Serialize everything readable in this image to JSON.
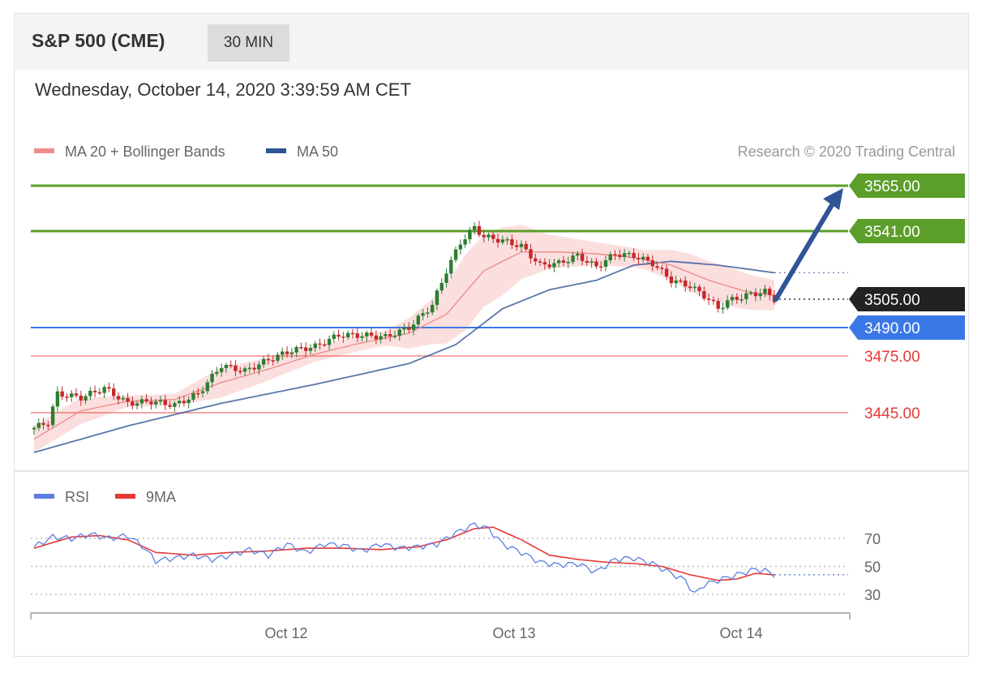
{
  "header": {
    "title": "S&P 500 (CME)",
    "timeframe": "30 MIN",
    "date": "Wednesday, October 14, 2020 3:39:59 AM CET"
  },
  "colors": {
    "ma20": "#f08c8c",
    "ma50": "#2f5597",
    "band": "#f9d4d4",
    "resistance": "#5c9e2a",
    "support_blue": "#3b78e7",
    "support_red": "#e53935",
    "current": "#222222",
    "arrow": "#2f5597",
    "rsi": "#5b7fe0",
    "rsi_ma": "#e53935",
    "candle_up": "#2e7d32",
    "candle_down": "#c62828"
  },
  "chart_data": [
    {
      "type": "line",
      "title": "S&P 500 (CME)",
      "legend": [
        {
          "name": "MA 20 + Bollinger Bands",
          "color": "#f08c8c"
        },
        {
          "name": "MA 50",
          "color": "#2f5597"
        }
      ],
      "credit": "Research © 2020 Trading Central",
      "ylim": [
        3420,
        3575
      ],
      "xticks": [
        "Oct 12",
        "Oct 13",
        "Oct 14"
      ],
      "levels": [
        {
          "value": 3565,
          "label": "3565.00",
          "kind": "resistance",
          "style": "tag"
        },
        {
          "value": 3541,
          "label": "3541.00",
          "kind": "resistance",
          "style": "tag"
        },
        {
          "value": 3505,
          "label": "3505.00",
          "kind": "current",
          "style": "tag"
        },
        {
          "value": 3490,
          "label": "3490.00",
          "kind": "support_blue",
          "style": "tag"
        },
        {
          "value": 3475,
          "label": "3475.00",
          "kind": "support_red",
          "style": "text"
        },
        {
          "value": 3445,
          "label": "3445.00",
          "kind": "support_red",
          "style": "text"
        }
      ],
      "close_anchors": [
        [
          0,
          3437
        ],
        [
          3,
          3440
        ],
        [
          5,
          3455
        ],
        [
          10,
          3453
        ],
        [
          15,
          3458
        ],
        [
          20,
          3450
        ],
        [
          25,
          3451
        ],
        [
          30,
          3449
        ],
        [
          35,
          3455
        ],
        [
          40,
          3470
        ],
        [
          45,
          3467
        ],
        [
          50,
          3473
        ],
        [
          55,
          3478
        ],
        [
          60,
          3480
        ],
        [
          65,
          3486
        ],
        [
          70,
          3486
        ],
        [
          75,
          3485
        ],
        [
          80,
          3490
        ],
        [
          85,
          3502
        ],
        [
          88,
          3520
        ],
        [
          91,
          3535
        ],
        [
          94,
          3543
        ],
        [
          96,
          3538
        ],
        [
          100,
          3536
        ],
        [
          104,
          3533
        ],
        [
          108,
          3523
        ],
        [
          112,
          3524
        ],
        [
          116,
          3528
        ],
        [
          120,
          3522
        ],
        [
          124,
          3529
        ],
        [
          128,
          3528
        ],
        [
          132,
          3524
        ],
        [
          136,
          3515
        ],
        [
          140,
          3512
        ],
        [
          144,
          3505
        ],
        [
          146,
          3500
        ],
        [
          148,
          3504
        ],
        [
          152,
          3507
        ],
        [
          156,
          3509
        ],
        [
          158,
          3505
        ]
      ],
      "ma20_anchors": [
        [
          0,
          3431
        ],
        [
          10,
          3446
        ],
        [
          20,
          3451
        ],
        [
          30,
          3452
        ],
        [
          40,
          3461
        ],
        [
          50,
          3468
        ],
        [
          60,
          3476
        ],
        [
          70,
          3482
        ],
        [
          80,
          3487
        ],
        [
          88,
          3497
        ],
        [
          96,
          3520
        ],
        [
          104,
          3530
        ],
        [
          112,
          3530
        ],
        [
          120,
          3529
        ],
        [
          128,
          3527
        ],
        [
          136,
          3523
        ],
        [
          144,
          3515
        ],
        [
          152,
          3509
        ],
        [
          158,
          3507
        ]
      ],
      "ma50_anchors": [
        [
          0,
          3424
        ],
        [
          20,
          3438
        ],
        [
          40,
          3450
        ],
        [
          60,
          3460
        ],
        [
          80,
          3471
        ],
        [
          90,
          3481
        ],
        [
          100,
          3500
        ],
        [
          110,
          3510
        ],
        [
          120,
          3515
        ],
        [
          128,
          3523
        ],
        [
          136,
          3525
        ],
        [
          146,
          3523
        ],
        [
          158,
          3519
        ]
      ],
      "band_width_anchors": [
        [
          0,
          7
        ],
        [
          10,
          7
        ],
        [
          20,
          3
        ],
        [
          30,
          3
        ],
        [
          40,
          8
        ],
        [
          50,
          6
        ],
        [
          60,
          4
        ],
        [
          75,
          4
        ],
        [
          85,
          12
        ],
        [
          92,
          20
        ],
        [
          100,
          18
        ],
        [
          110,
          9
        ],
        [
          120,
          6
        ],
        [
          130,
          5
        ],
        [
          140,
          10
        ],
        [
          150,
          10
        ],
        [
          158,
          8
        ]
      ]
    },
    {
      "type": "line",
      "legend": [
        {
          "name": "RSI",
          "color": "#5b7fe0"
        },
        {
          "name": "9MA",
          "color": "#e53935"
        }
      ],
      "ylim": [
        20,
        90
      ],
      "yticks": [
        "70",
        "50",
        "30"
      ],
      "ytick_values": [
        70,
        50,
        30
      ],
      "rsi_last": 44,
      "rsi_anchors": [
        [
          0,
          64
        ],
        [
          4,
          71
        ],
        [
          8,
          70
        ],
        [
          12,
          73
        ],
        [
          16,
          70
        ],
        [
          20,
          72
        ],
        [
          23,
          65
        ],
        [
          26,
          54
        ],
        [
          30,
          56
        ],
        [
          34,
          58
        ],
        [
          38,
          55
        ],
        [
          42,
          58
        ],
        [
          46,
          62
        ],
        [
          50,
          58
        ],
        [
          54,
          66
        ],
        [
          58,
          60
        ],
        [
          62,
          66
        ],
        [
          66,
          65
        ],
        [
          70,
          61
        ],
        [
          74,
          66
        ],
        [
          78,
          63
        ],
        [
          82,
          64
        ],
        [
          86,
          66
        ],
        [
          90,
          74
        ],
        [
          94,
          80
        ],
        [
          97,
          77
        ],
        [
          100,
          66
        ],
        [
          104,
          60
        ],
        [
          108,
          53
        ],
        [
          112,
          51
        ],
        [
          116,
          52
        ],
        [
          120,
          46
        ],
        [
          124,
          55
        ],
        [
          128,
          56
        ],
        [
          132,
          52
        ],
        [
          136,
          45
        ],
        [
          139,
          40
        ],
        [
          141,
          30
        ],
        [
          143,
          37
        ],
        [
          146,
          40
        ],
        [
          150,
          44
        ],
        [
          154,
          48
        ],
        [
          156,
          47
        ],
        [
          158,
          44
        ]
      ],
      "rsi_ma_anchors": [
        [
          0,
          63
        ],
        [
          8,
          71
        ],
        [
          14,
          72
        ],
        [
          20,
          69
        ],
        [
          26,
          60
        ],
        [
          34,
          58
        ],
        [
          42,
          60
        ],
        [
          50,
          61
        ],
        [
          58,
          63
        ],
        [
          66,
          63
        ],
        [
          74,
          62
        ],
        [
          82,
          64
        ],
        [
          88,
          69
        ],
        [
          94,
          77
        ],
        [
          98,
          78
        ],
        [
          104,
          69
        ],
        [
          110,
          58
        ],
        [
          116,
          55
        ],
        [
          122,
          53
        ],
        [
          128,
          52
        ],
        [
          134,
          50
        ],
        [
          140,
          44
        ],
        [
          146,
          40
        ],
        [
          150,
          41
        ],
        [
          154,
          45
        ],
        [
          158,
          44
        ]
      ]
    }
  ]
}
